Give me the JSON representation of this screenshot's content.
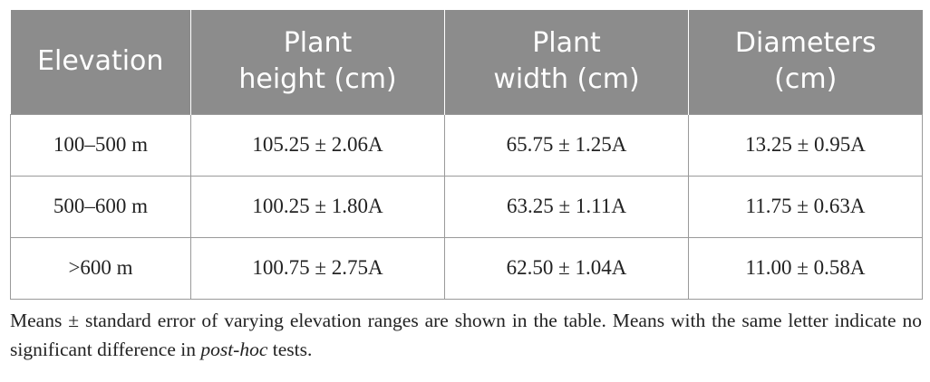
{
  "table": {
    "headers": [
      {
        "lines": [
          "Elevation"
        ]
      },
      {
        "lines": [
          "Plant",
          "height (cm)"
        ]
      },
      {
        "lines": [
          "Plant",
          "width (cm)"
        ]
      },
      {
        "lines": [
          "Diameters",
          "(cm)"
        ]
      }
    ],
    "rows": [
      [
        "100–500 m",
        "105.25 ± 2.06A",
        "65.75 ± 1.25A",
        "13.25 ± 0.95A"
      ],
      [
        "500–600 m",
        "100.25 ± 1.80A",
        "63.25 ± 1.11A",
        "11.75 ± 0.63A"
      ],
      [
        ">600 m",
        "100.75 ± 2.75A",
        "62.50 ± 1.04A",
        "11.00 ± 0.58A"
      ]
    ]
  },
  "footnote": {
    "before_italic": "Means ± standard error of varying elevation ranges are shown in the table. Means with the same letter indicate no significant difference in ",
    "italic": "post-hoc",
    "after_italic": " tests."
  },
  "colors": {
    "header_background": "#8c8c8c",
    "header_text": "#ffffff",
    "cell_border": "#9a9a9a"
  }
}
